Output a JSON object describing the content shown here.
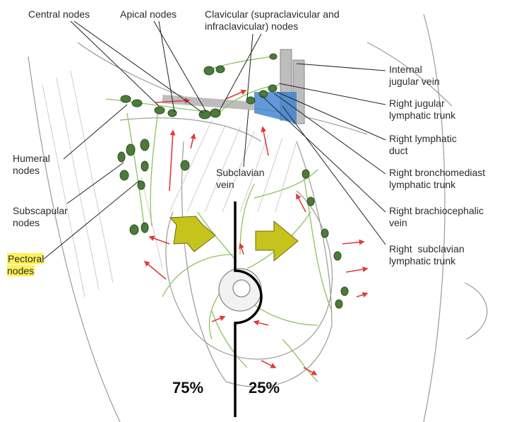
{
  "labels": {
    "central_nodes": "Central nodes",
    "apical_nodes": "Apical nodes",
    "clavicular_nodes": "Clavicular (supraclavicular and\ninfraclavicular) nodes",
    "internal_jugular_vein": "Internal\njugular vein",
    "right_jugular_trunk": "Right jugular\nlymphatic trunk",
    "right_lymphatic_duct": "Right lymphatic\nduct",
    "right_bronchomediastinal_trunk": "Right bronchomediast\nlymphatic trunk",
    "right_brachiocephalic_vein": "Right brachiocephalic\nvein",
    "right_subclavian_trunk": "Right  subclavian\nlymphatic trunk",
    "humeral_nodes": "Humeral\nnodes",
    "subscapular_nodes": "Subscapular\nnodes",
    "pectoral_nodes": "Pectoral\nnodes",
    "subclavian_vein": "Subclavian\nvein"
  },
  "drainage": {
    "lateral_percent": "75%",
    "medial_percent": "25%"
  },
  "colors": {
    "node_fill": "#4c7a3a",
    "lymph_vessel": "#8fc15e",
    "flow_arrow": "#e23a3a",
    "drainage_arrow": "#c6c31c",
    "vein_blue": "#3a7fd0",
    "highlight": "#fff15a"
  }
}
